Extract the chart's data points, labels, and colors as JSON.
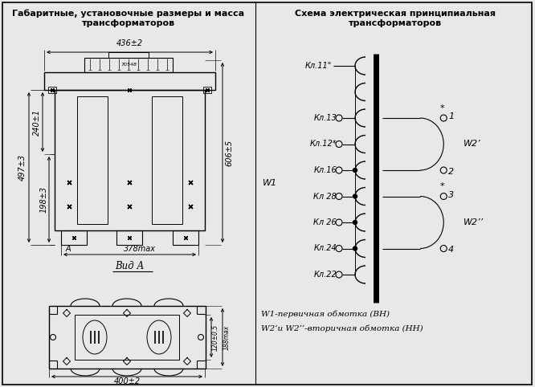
{
  "bg_color": "#e8e8e8",
  "title_left": "Габаритные, установочные размеры и масса\nтрансформаторов",
  "title_right": "Схема электрическая принципиальная\nтрансформаторов",
  "footer_line1": "W1-первичная обмотка (ВН)",
  "footer_line2": "W2’и W2’’-вторичная обмотка (НН)",
  "dim_436": "436±2",
  "dim_497": "497±3",
  "dim_240": "240±1",
  "dim_198": "198±3",
  "dim_606": "606±5",
  "dim_378": "378max",
  "dim_400": "400±2",
  "dim_120": "120±0.5",
  "dim_188": "188max",
  "label_vid": "Вид А",
  "label_A": "A",
  "label_W1": "W1",
  "label_W2p": "W2’",
  "label_W2pp": "W2’’",
  "terminals_primary": [
    "Кл.11\"",
    "Кл.13",
    "Кл.12*",
    "Кл.16",
    "Кл 28",
    "Кл 26",
    "Кл.24",
    "Кл.22"
  ],
  "terminals_numbers": [
    "1",
    "2",
    "3",
    "4"
  ]
}
